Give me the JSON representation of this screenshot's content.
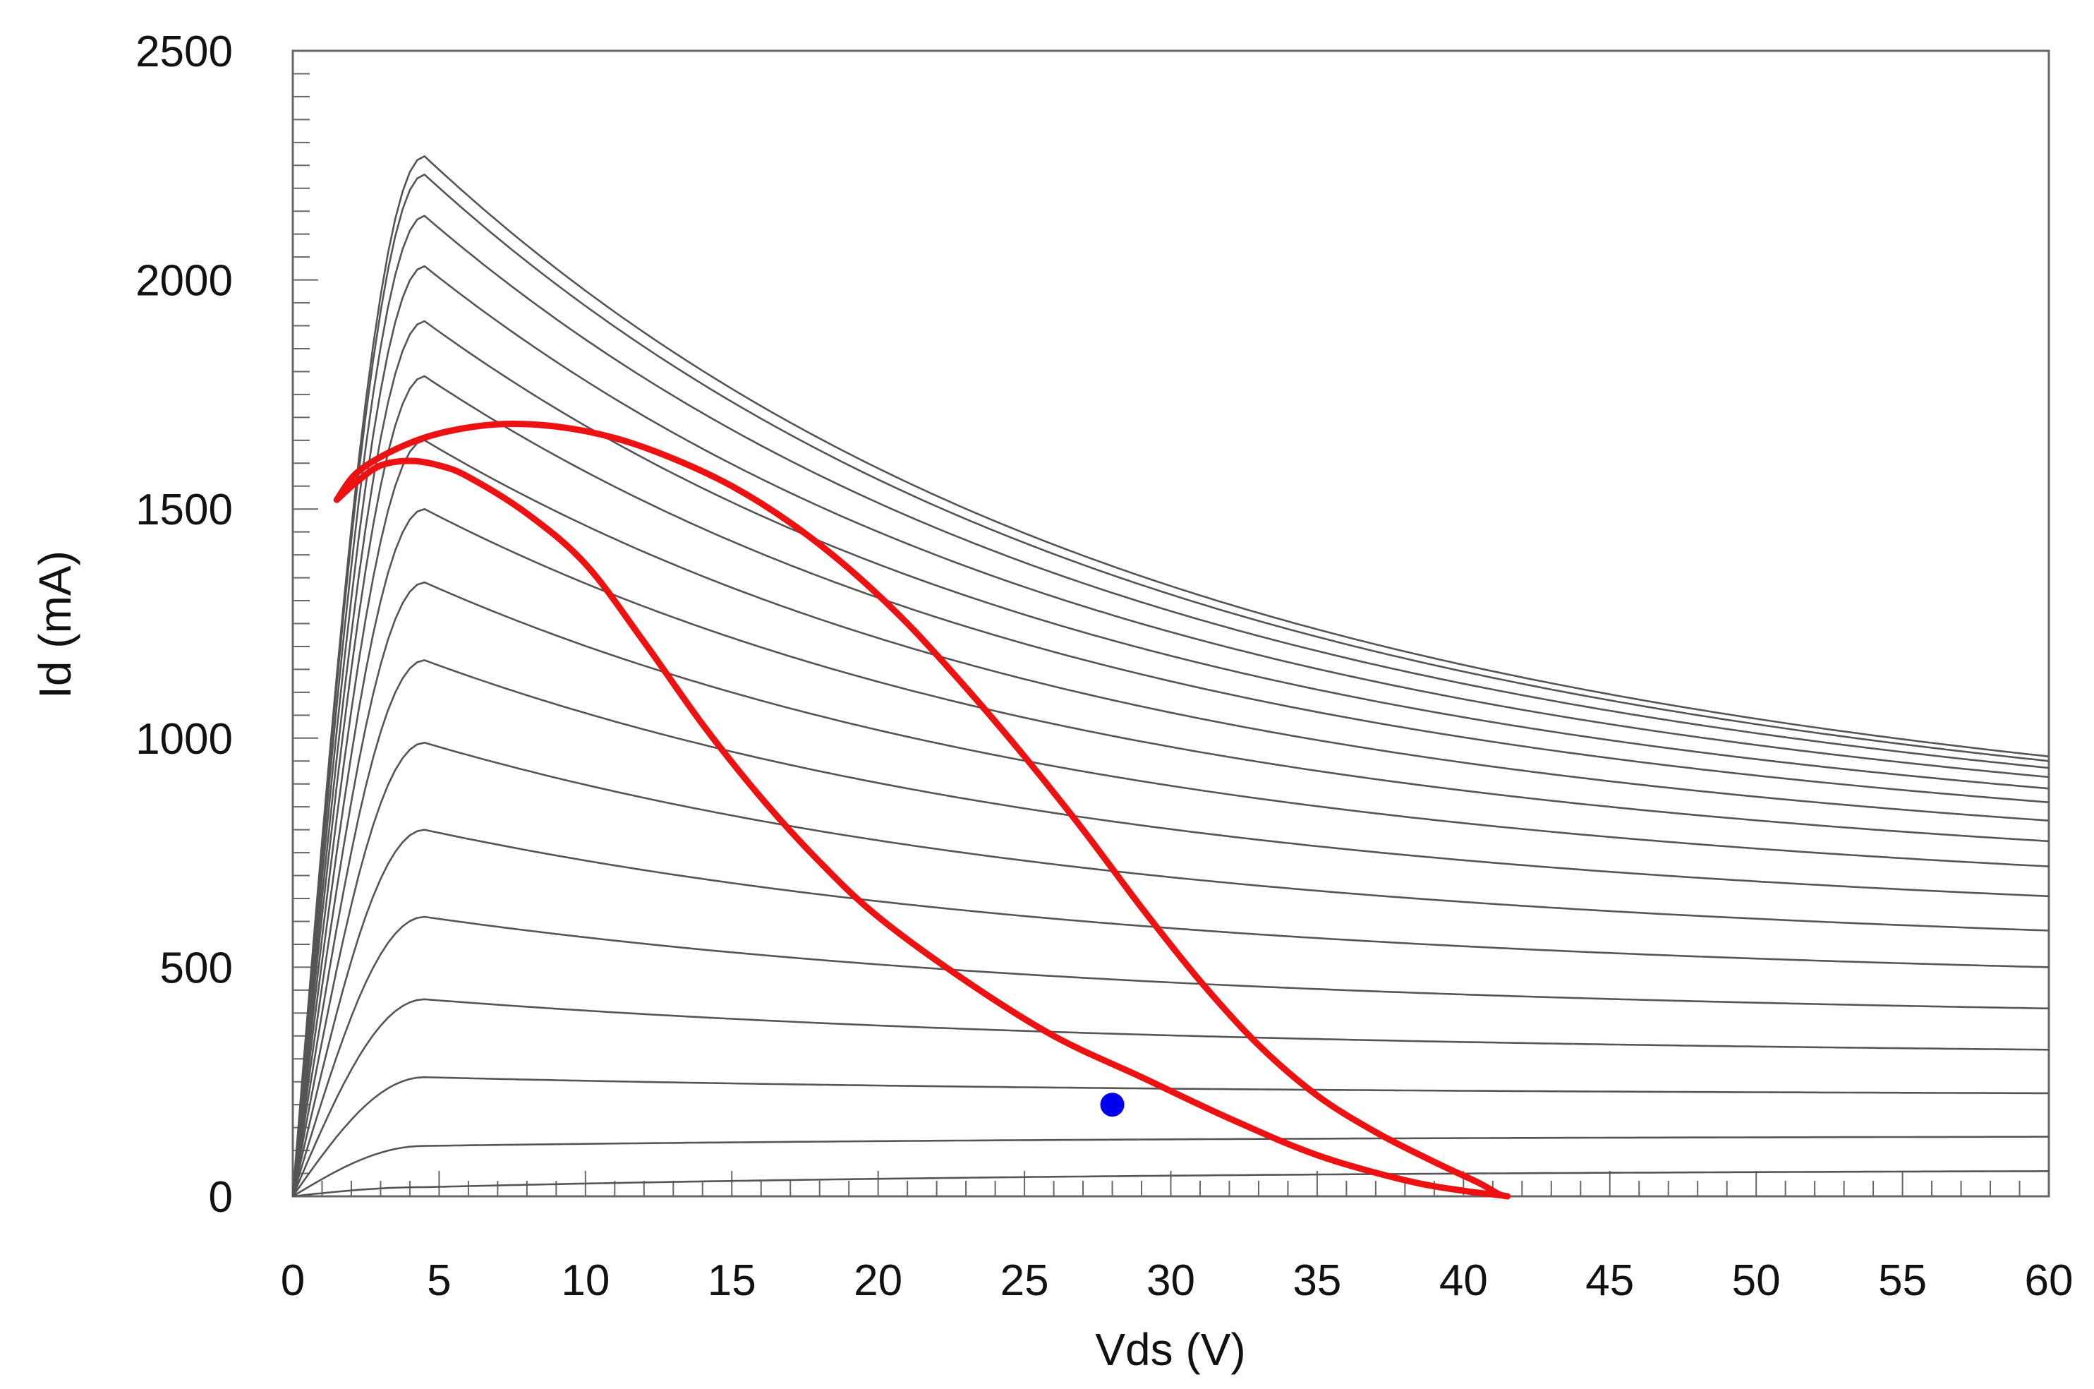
{
  "chart_data": {
    "type": "line",
    "title": "",
    "xlabel": "Vds (V)",
    "ylabel": "Id (mA)",
    "xlim": [
      0,
      60
    ],
    "ylim": [
      0,
      2500
    ],
    "xticks": [
      0,
      5,
      10,
      15,
      20,
      25,
      30,
      35,
      40,
      45,
      50,
      55,
      60
    ],
    "yticks": [
      0,
      500,
      1000,
      1500,
      2000,
      2500
    ],
    "minor_ticks": true,
    "grid": false,
    "legend": "none",
    "colors": {
      "family_curves": "#555555",
      "load_line": "#ee1111",
      "bias_point": "#0000ee",
      "frame": "#666666"
    },
    "iv_family": {
      "knee_vds": 4.5,
      "curves": [
        {
          "peak_id": 2270,
          "id_at_60v": 960
        },
        {
          "peak_id": 2230,
          "id_at_60v": 950
        },
        {
          "peak_id": 2140,
          "id_at_60v": 935
        },
        {
          "peak_id": 2030,
          "id_at_60v": 915
        },
        {
          "peak_id": 1910,
          "id_at_60v": 890
        },
        {
          "peak_id": 1790,
          "id_at_60v": 860
        },
        {
          "peak_id": 1650,
          "id_at_60v": 820
        },
        {
          "peak_id": 1500,
          "id_at_60v": 775
        },
        {
          "peak_id": 1340,
          "id_at_60v": 720
        },
        {
          "peak_id": 1170,
          "id_at_60v": 655
        },
        {
          "peak_id": 990,
          "id_at_60v": 580
        },
        {
          "peak_id": 800,
          "id_at_60v": 500
        },
        {
          "peak_id": 610,
          "id_at_60v": 410
        },
        {
          "peak_id": 430,
          "id_at_60v": 320
        },
        {
          "peak_id": 260,
          "id_at_60v": 225
        },
        {
          "peak_id": 110,
          "id_at_60v": 130
        },
        {
          "peak_id": 20,
          "id_at_60v": 55
        }
      ]
    },
    "load_line": {
      "name": "load line",
      "points": [
        [
          1.5,
          1520
        ],
        [
          2.2,
          1580
        ],
        [
          3.5,
          1630
        ],
        [
          5,
          1665
        ],
        [
          7,
          1685
        ],
        [
          9,
          1680
        ],
        [
          11,
          1655
        ],
        [
          13,
          1610
        ],
        [
          15,
          1550
        ],
        [
          17,
          1470
        ],
        [
          19,
          1370
        ],
        [
          21,
          1250
        ],
        [
          23,
          1110
        ],
        [
          25,
          960
        ],
        [
          27,
          800
        ],
        [
          29,
          630
        ],
        [
          31,
          470
        ],
        [
          33,
          330
        ],
        [
          35,
          220
        ],
        [
          37,
          140
        ],
        [
          39,
          75
        ],
        [
          40.5,
          30
        ],
        [
          41.2,
          5
        ],
        [
          41.5,
          0
        ],
        [
          41.2,
          3
        ],
        [
          40,
          12
        ],
        [
          38,
          35
        ],
        [
          35,
          90
        ],
        [
          32,
          170
        ],
        [
          29,
          260
        ],
        [
          26,
          350
        ],
        [
          23,
          470
        ],
        [
          20,
          610
        ],
        [
          18,
          730
        ],
        [
          16,
          870
        ],
        [
          14,
          1030
        ],
        [
          12,
          1210
        ],
        [
          10,
          1380
        ],
        [
          8,
          1490
        ],
        [
          6,
          1570
        ],
        [
          5,
          1595
        ],
        [
          4,
          1605
        ],
        [
          3,
          1595
        ],
        [
          2.2,
          1560
        ],
        [
          1.5,
          1520
        ]
      ]
    },
    "bias_point": {
      "x": 28,
      "y": 200
    }
  }
}
